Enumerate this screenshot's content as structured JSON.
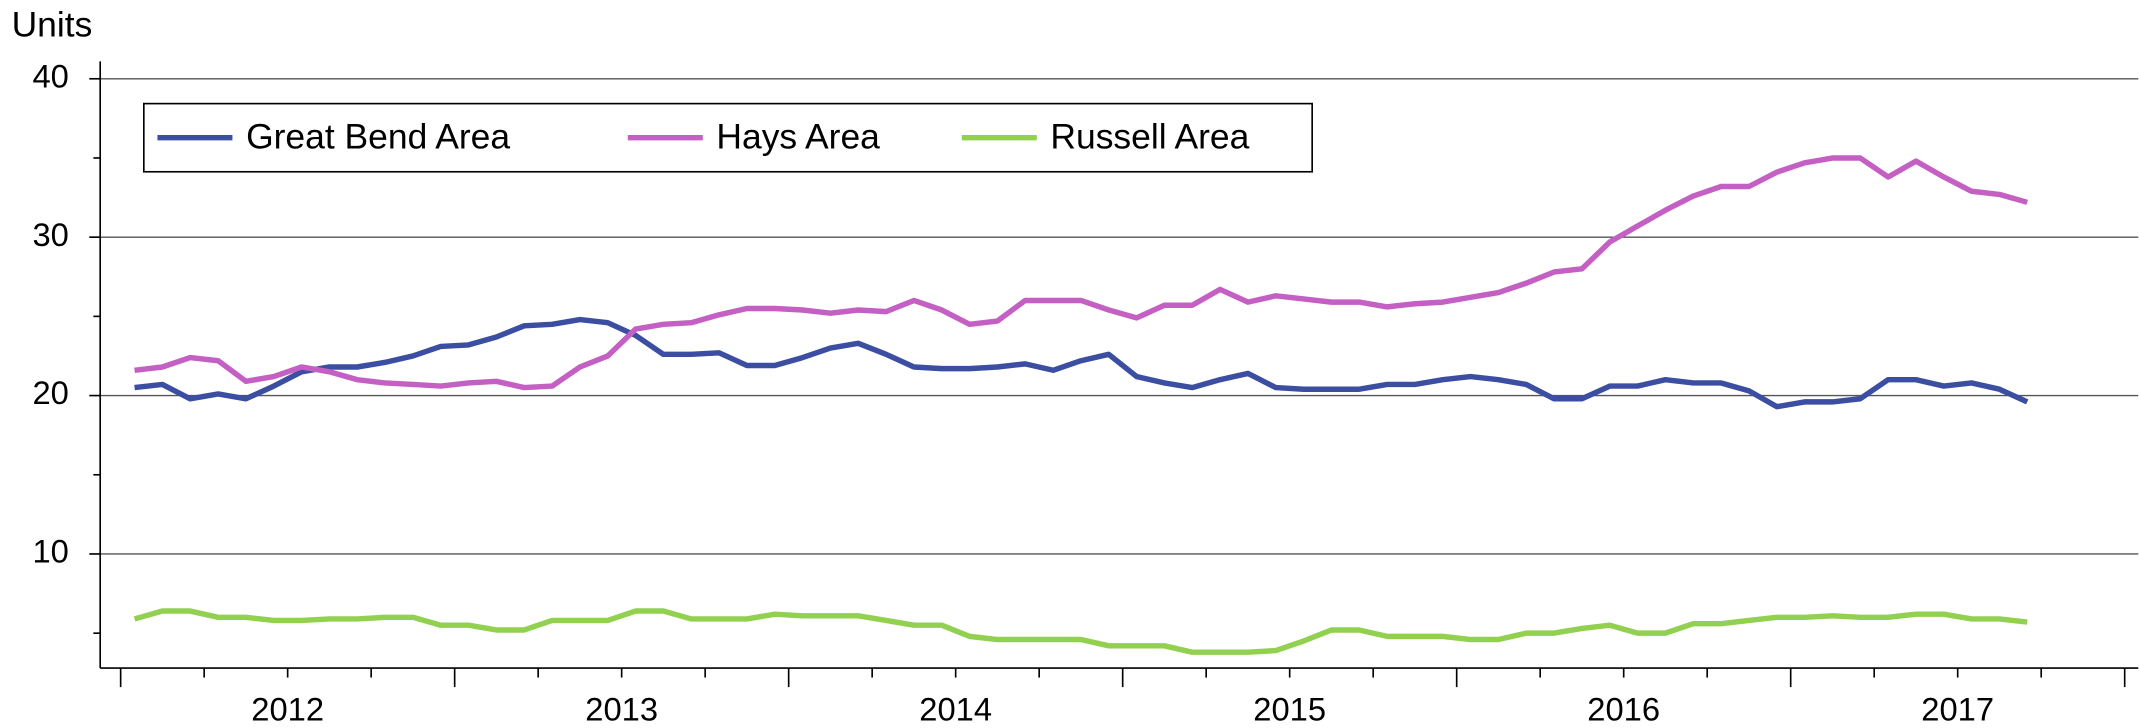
{
  "chart_data": {
    "type": "line",
    "y_unit_label": "Units",
    "categories": [
      null,
      null,
      null,
      null,
      null,
      null,
      "2012",
      null,
      null,
      null,
      null,
      null,
      null,
      null,
      null,
      null,
      null,
      null,
      "2013",
      null,
      null,
      null,
      null,
      null,
      null,
      null,
      null,
      null,
      null,
      null,
      "2014",
      null,
      null,
      null,
      null,
      null,
      null,
      null,
      null,
      null,
      null,
      null,
      "2015",
      null,
      null,
      null,
      null,
      null,
      null,
      null,
      null,
      null,
      null,
      null,
      "2016",
      null,
      null,
      null,
      null,
      null,
      null,
      null,
      null,
      null,
      null,
      null,
      "2017",
      null,
      null,
      null,
      null,
      null
    ],
    "series": [
      {
        "name": "Great Bend Area",
        "color": "#3b4ea2",
        "values": [
          20.5,
          20.7,
          19.8,
          20.1,
          19.8,
          20.6,
          21.5,
          21.8,
          21.8,
          22.1,
          22.5,
          23.1,
          23.2,
          23.7,
          24.4,
          24.5,
          24.8,
          24.6,
          23.8,
          22.6,
          22.6,
          22.7,
          21.9,
          21.9,
          22.4,
          23.0,
          23.3,
          22.6,
          21.8,
          21.7,
          21.7,
          21.8,
          22.0,
          21.6,
          22.2,
          22.6,
          21.2,
          20.8,
          20.5,
          21.0,
          21.4,
          20.5,
          20.4,
          20.4,
          20.4,
          20.7,
          20.7,
          21.0,
          21.2,
          21.0,
          20.7,
          19.8,
          19.8,
          20.6,
          20.6,
          21.0,
          20.8,
          20.8,
          20.3,
          19.3,
          19.6,
          19.6,
          19.8,
          21.0,
          21.0,
          20.6,
          20.8,
          20.4,
          19.6,
          null,
          null,
          null
        ]
      },
      {
        "name": "Hays Area",
        "color": "#c45fc4",
        "values": [
          21.6,
          21.8,
          22.4,
          22.2,
          20.9,
          21.2,
          21.8,
          21.5,
          21.0,
          20.8,
          20.7,
          20.6,
          20.8,
          20.9,
          20.5,
          20.6,
          21.8,
          22.5,
          24.2,
          24.5,
          24.6,
          25.1,
          25.5,
          25.5,
          25.4,
          25.2,
          25.4,
          25.3,
          26.0,
          25.4,
          24.5,
          24.7,
          26.0,
          26.0,
          26.0,
          25.4,
          24.9,
          25.7,
          25.7,
          26.7,
          25.9,
          26.3,
          26.1,
          25.9,
          25.9,
          25.6,
          25.8,
          25.9,
          26.2,
          26.5,
          27.1,
          27.8,
          28.0,
          29.7,
          30.7,
          31.7,
          32.6,
          33.2,
          33.2,
          34.1,
          34.7,
          35.0,
          35.0,
          33.8,
          34.8,
          33.8,
          32.9,
          32.7,
          32.2,
          null,
          null,
          null
        ]
      },
      {
        "name": "Russell Area",
        "color": "#92d050",
        "values": [
          5.9,
          6.4,
          6.4,
          6.0,
          6.0,
          5.8,
          5.8,
          5.9,
          5.9,
          6.0,
          6.0,
          5.5,
          5.5,
          5.2,
          5.2,
          5.8,
          5.8,
          5.8,
          6.4,
          6.4,
          5.9,
          5.9,
          5.9,
          6.2,
          6.1,
          6.1,
          6.1,
          5.8,
          5.5,
          5.5,
          4.8,
          4.6,
          4.6,
          4.6,
          4.6,
          4.2,
          4.2,
          4.2,
          3.8,
          3.8,
          3.8,
          3.9,
          4.5,
          5.2,
          5.2,
          4.8,
          4.8,
          4.8,
          4.6,
          4.6,
          5.0,
          5.0,
          5.3,
          5.5,
          5.0,
          5.0,
          5.6,
          5.6,
          5.8,
          6.0,
          6.0,
          6.1,
          6.0,
          6.0,
          6.2,
          6.2,
          5.9,
          5.9,
          5.7,
          null,
          null,
          null
        ]
      }
    ],
    "ylim": [
      2.8,
      41.1
    ],
    "yticks": [
      10,
      20,
      30,
      40
    ],
    "yminorticks": [
      5,
      15,
      25,
      35
    ],
    "grid": true
  }
}
